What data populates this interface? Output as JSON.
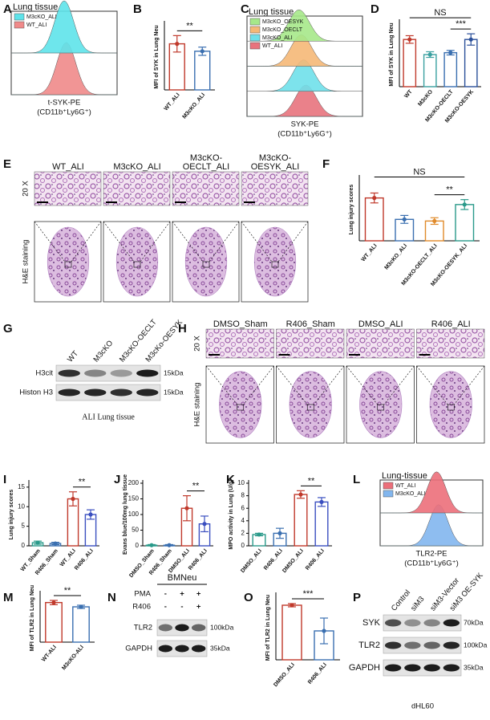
{
  "panel_letters": [
    "A",
    "B",
    "C",
    "D",
    "E",
    "F",
    "G",
    "H",
    "I",
    "J",
    "K",
    "L",
    "M",
    "N",
    "O",
    "P"
  ],
  "histograms": [
    {
      "title": "Lung tissue",
      "legend": [
        "M3cKO_ALI",
        "WT_ALI"
      ],
      "colors": [
        "#5ee3ea",
        "#f08a8a"
      ],
      "xlabel": [
        "t-SYK-PE",
        "(CD11b⁺Ly6G⁺)"
      ]
    },
    {
      "title": "Lung tissue",
      "legend": [
        "M3cKO_OESYK",
        "M3cKO_OECLT",
        "M3cKO_ALI",
        "WT_ALI"
      ],
      "colors": [
        "#a6e88a",
        "#f5b877",
        "#6fe0ea",
        "#e8737d"
      ],
      "xlabel": [
        "SYK-PE",
        "(CD11b⁺Ly6G⁺)"
      ]
    },
    {
      "title": "Lung-tissue",
      "legend": [
        "WT_ALI",
        "M3cKO_ALI"
      ],
      "colors": [
        "#ec6f7a",
        "#82b6ee"
      ],
      "xlabel": [
        "TLR2-PE",
        "(CD11b⁺Ly6G⁺)"
      ]
    }
  ],
  "histology": [
    {
      "columns": [
        [
          "WT_ALI"
        ],
        [
          "M3cKO_ALI"
        ],
        [
          "M3cKO-",
          "OECLT_ALI"
        ],
        [
          "M3cKO-",
          "OESYK_ALI"
        ]
      ],
      "magnification": "20 X",
      "stain": "H&E staining"
    },
    {
      "columns": [
        [
          "DMSO_Sham"
        ],
        [
          "R406_Sham"
        ],
        [
          "DMSO_ALI"
        ],
        [
          "R406_ALI"
        ]
      ],
      "magnification": "20 X",
      "stain": "H&E staining"
    }
  ],
  "blots": [
    {
      "lanes": [
        "WT",
        "M3cKO",
        "M3cKO-OECLT",
        "M3cKo-OESYK"
      ],
      "rows": [
        {
          "name": "H3cit",
          "size": "15kDa"
        },
        {
          "name": "Histon H3",
          "size": "15kDa"
        }
      ],
      "caption": "ALI Lung tissue"
    },
    {
      "header": "BMNeu",
      "conditions": [
        {
          "name": "PMA",
          "marks": [
            "-",
            "+",
            "+"
          ]
        },
        {
          "name": "R406",
          "marks": [
            "-",
            "-",
            "+"
          ]
        }
      ],
      "rows": [
        {
          "name": "TLR2",
          "size": "100kDa"
        },
        {
          "name": "GAPDH",
          "size": "35kDa"
        }
      ]
    },
    {
      "lanes": [
        "Control",
        "siM3",
        "siM3-Vector",
        "siM3 OE-SYK"
      ],
      "rows": [
        {
          "name": "SYK",
          "size": "70kDa"
        },
        {
          "name": "TLR2",
          "size": "100kDa"
        },
        {
          "name": "GAPDH",
          "size": "35kDa"
        }
      ],
      "caption": "dHL60"
    }
  ],
  "chart_data": [
    {
      "type": "bar",
      "ylabel": "MFI of SYK in Lung Neu",
      "categories": [
        "WT_ALI",
        "M3cKO_ALI"
      ],
      "values": [
        5.6,
        4.7
      ],
      "errors": [
        1.0,
        0.5
      ],
      "colors": [
        "#c0392b",
        "#3a6fb0"
      ],
      "ylim": [
        0,
        8
      ],
      "annotations": [
        "**"
      ]
    },
    {
      "type": "bar",
      "ylabel": "MFI of SYK in Lung Neu",
      "categories": [
        "WT",
        "M3cKO",
        "M3cKO-OECLT",
        "M3cKO-OESYK"
      ],
      "values": [
        2.5,
        1.7,
        1.8,
        2.5
      ],
      "errors": [
        0.2,
        0.15,
        0.12,
        0.3
      ],
      "colors": [
        "#c0392b",
        "#3aa0a0",
        "#3a6fb0",
        "#2a4f9a"
      ],
      "ylim": [
        0,
        3.4
      ],
      "annotations": [
        "NS",
        "***"
      ]
    },
    {
      "type": "bar",
      "ylabel": "Lung injury scores",
      "categories": [
        "WT_ALI",
        "M3cKO_ALI",
        "M3cKO-OECLT_ALI",
        "M3cKO-OESYK_ALI"
      ],
      "values": [
        13,
        6.5,
        6,
        11
      ],
      "errors": [
        1.5,
        1.2,
        1.0,
        1.5
      ],
      "colors": [
        "#c0392b",
        "#3a6fb0",
        "#e08a2a",
        "#2a9a8a"
      ],
      "ylim": [
        0,
        19
      ],
      "annotations": [
        "NS",
        "**"
      ]
    },
    {
      "type": "bar",
      "ylabel": "Lung injury scores",
      "categories": [
        "WT_Sham",
        "R406_Sham",
        "WT_ALI",
        "R406_ALI"
      ],
      "values": [
        0.8,
        0.6,
        12,
        8
      ],
      "errors": [
        0.4,
        0.3,
        1.8,
        1.2
      ],
      "colors": [
        "#2a9a8a",
        "#3a6fb0",
        "#c0392b",
        "#3a4fc0"
      ],
      "ylim": [
        0,
        16
      ],
      "yticks": [
        0,
        5,
        10,
        15
      ],
      "annotations": [
        "**"
      ]
    },
    {
      "type": "bar",
      "ylabel": "Evans blue/100mg lung tissue",
      "categories": [
        "DMSO_Sham",
        "R406_Sham",
        "DMSO_ALI",
        "R406_ALI"
      ],
      "values": [
        2,
        2,
        120,
        70
      ],
      "errors": [
        2,
        2,
        40,
        25
      ],
      "colors": [
        "#2a9a8a",
        "#3a6fb0",
        "#c0392b",
        "#3a4fc0"
      ],
      "ylim": [
        0,
        200
      ],
      "yticks": [
        0,
        50,
        100,
        150,
        200
      ],
      "annotations": [
        "**"
      ]
    },
    {
      "type": "bar",
      "ylabel": "MPO activity in Lung (U/g)",
      "categories": [
        "DMSO_ALI",
        "R406_ALI",
        "DMSO_ALI",
        "R406_ALI"
      ],
      "values": [
        1.8,
        2.0,
        8.2,
        7.0
      ],
      "errors": [
        0.2,
        0.8,
        0.6,
        0.7
      ],
      "colors": [
        "#2a9a8a",
        "#3a6fb0",
        "#c0392b",
        "#3a4fc0"
      ],
      "ylim": [
        0,
        10
      ],
      "yticks": [
        0,
        2,
        4,
        6,
        8,
        10
      ],
      "annotations": [
        "**"
      ]
    },
    {
      "type": "bar",
      "ylabel": "MFI of TLR2 in Lung Neu",
      "categories": [
        "WT-ALI",
        "M3cKO-ALI"
      ],
      "values": [
        3.7,
        3.3
      ],
      "errors": [
        0.2,
        0.15
      ],
      "colors": [
        "#c0392b",
        "#3a6fb0"
      ],
      "ylim": [
        0,
        4.5
      ],
      "annotations": [
        "**"
      ]
    },
    {
      "type": "bar",
      "ylabel": "MFI of TLR2 in Lung Neu",
      "categories": [
        "DMSO_ALI",
        "R406_ALI"
      ],
      "values": [
        3.4,
        1.8
      ],
      "errors": [
        0.1,
        0.8
      ],
      "colors": [
        "#c0392b",
        "#3a6fb0"
      ],
      "ylim": [
        0,
        4
      ],
      "annotations": [
        "***"
      ]
    }
  ]
}
